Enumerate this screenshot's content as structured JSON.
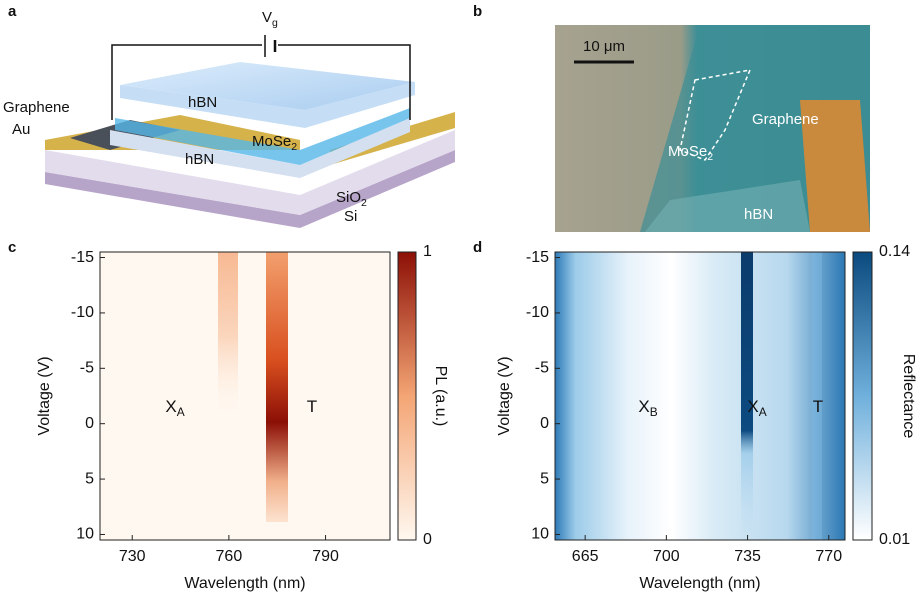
{
  "panel_labels": [
    "a",
    "b",
    "c",
    "d"
  ],
  "schematic": {
    "gate": {
      "text": "V",
      "sub": "g"
    },
    "labels": [
      {
        "text": "Graphene"
      },
      {
        "text": "Au"
      },
      {
        "text": "hBN"
      },
      {
        "text": "MoSe",
        "sub": "2"
      },
      {
        "text": "hBN"
      },
      {
        "text": "SiO",
        "sub": "2"
      },
      {
        "text": "Si"
      }
    ]
  },
  "micrograph": {
    "scale_bar": "10 μm",
    "labels": [
      {
        "text": "MoSe",
        "sub": "2"
      },
      {
        "text": "Graphene"
      },
      {
        "text": "hBN"
      }
    ]
  },
  "chart_data": [
    {
      "type": "heatmap",
      "x_label": "Wavelength (nm)",
      "y_label": "Voltage (V)",
      "xlim": [
        720,
        810
      ],
      "xticks": [
        730,
        760,
        790
      ],
      "ylim": [
        -15.5,
        10.5
      ],
      "y_reversed": true,
      "yticks": [
        -15,
        -10,
        -5,
        0,
        5,
        10
      ],
      "colorbar": {
        "label": "PL (a.u.)",
        "lim": [
          0,
          1
        ],
        "ticks": [
          0,
          1
        ],
        "colors": [
          "#fff8f0",
          "#f4a574",
          "#8c0f06"
        ]
      },
      "annotations": [
        {
          "text": "X",
          "sub": "A"
        },
        {
          "text": "T"
        }
      ]
    },
    {
      "type": "heatmap",
      "x_label": "Wavelength (nm)",
      "y_label": "Voltage (V)",
      "xlim": [
        652,
        777
      ],
      "xticks": [
        665,
        700,
        735,
        770
      ],
      "ylim": [
        -15.5,
        10.5
      ],
      "y_reversed": true,
      "yticks": [
        -15,
        -10,
        -5,
        0,
        5,
        10
      ],
      "colorbar": {
        "label": "Reflectance",
        "lim": [
          0.01,
          0.14
        ],
        "ticks": [
          0.01,
          0.14
        ],
        "colors": [
          "#ffffff",
          "#6fb0dc",
          "#0a4a7e"
        ]
      },
      "annotations": [
        {
          "text": "X",
          "sub": "B"
        },
        {
          "text": "X",
          "sub": "A"
        },
        {
          "text": "T"
        }
      ]
    }
  ]
}
